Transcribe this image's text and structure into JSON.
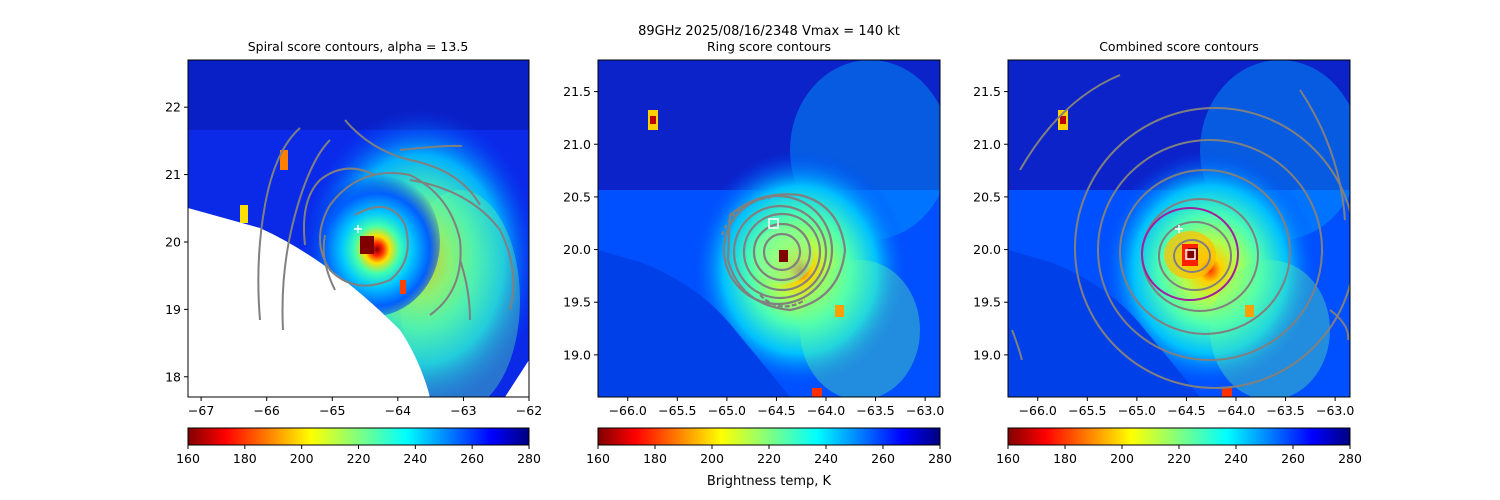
{
  "figure": {
    "suptitle_line1": "89GHz  2025/08/16/2348    Vmax = 140 kt",
    "colorbar_label": "Brightness temp, K"
  },
  "colors": {
    "contour": "#808080",
    "ring": "#a020a0",
    "marker": "#ffffff"
  },
  "colormap": "jet-reversed",
  "chart_data": [
    {
      "type": "heatmap",
      "title": "Spiral score contours, alpha = 13.5",
      "xlim": [
        -67.2,
        -62.0
      ],
      "ylim": [
        17.7,
        22.7
      ],
      "xticks": [
        -67,
        -66,
        -65,
        -64,
        -63,
        -62
      ],
      "yticks": [
        18,
        19,
        20,
        21,
        22
      ],
      "colorbar": {
        "range": [
          160,
          280
        ],
        "ticks": [
          160,
          180,
          200,
          220,
          240,
          260,
          280
        ]
      },
      "center_cross": [
        -64.6,
        20.17
      ],
      "storm_core": [
        -64.5,
        19.92
      ],
      "no_data_region": "lower-left",
      "overlay": "spiral-contours"
    },
    {
      "type": "heatmap",
      "title": "Ring score contours",
      "xlim": [
        -66.3,
        -62.85
      ],
      "ylim": [
        18.6,
        21.8
      ],
      "xticks": [
        -66.0,
        -65.5,
        -65.0,
        -64.5,
        -64.0,
        -63.5,
        -63.0
      ],
      "yticks": [
        19.0,
        19.5,
        20.0,
        20.5,
        21.0,
        21.5
      ],
      "colorbar": {
        "range": [
          160,
          280
        ],
        "ticks": [
          160,
          180,
          200,
          220,
          240,
          260,
          280
        ]
      },
      "center_square": [
        -64.55,
        20.22
      ],
      "storm_core": [
        -64.48,
        19.93
      ],
      "overlay": "ring-contours"
    },
    {
      "type": "heatmap",
      "title": "Combined score contours",
      "xlim": [
        -66.3,
        -62.85
      ],
      "ylim": [
        18.6,
        21.8
      ],
      "xticks": [
        -66.0,
        -65.5,
        -65.0,
        -64.5,
        -64.0,
        -63.5,
        -63.0
      ],
      "yticks": [
        19.0,
        19.5,
        20.0,
        20.5,
        21.0,
        21.5
      ],
      "colorbar": {
        "range": [
          160,
          280
        ],
        "ticks": [
          160,
          180,
          200,
          220,
          240,
          260,
          280
        ]
      },
      "center_cross": [
        -64.55,
        20.18
      ],
      "center_square": [
        -64.45,
        19.92
      ],
      "ring_circle": {
        "center": [
          -64.45,
          19.95
        ],
        "radius_deg": 0.45
      },
      "storm_core": [
        -64.45,
        19.92
      ],
      "overlay": "combined-contours"
    }
  ]
}
